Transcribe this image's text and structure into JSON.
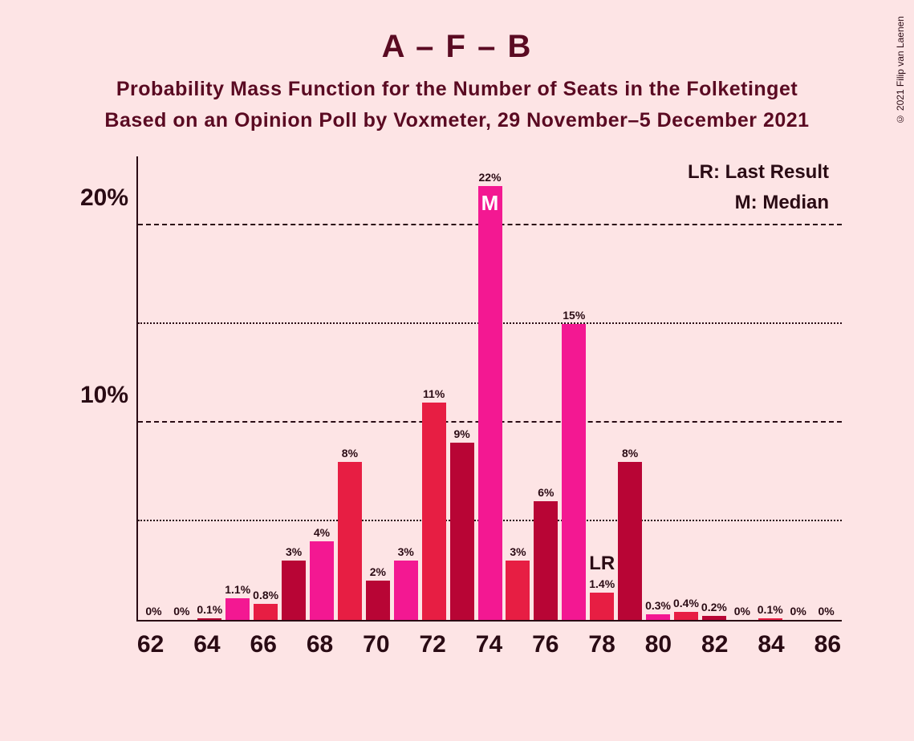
{
  "copyright": "© 2021 Filip van Laenen",
  "title": "A – F – B",
  "subtitle1": "Probability Mass Function for the Number of Seats in the Folketinget",
  "subtitle2": "Based on an Opinion Poll by Voxmeter, 29 November–5 December 2021",
  "legend": {
    "lr": "LR: Last Result",
    "m": "M: Median"
  },
  "chart": {
    "type": "bar",
    "background_color": "#fde4e5",
    "axis_color": "#2a0b14",
    "text_color": "#5a0a22",
    "ymax": 23.5,
    "ygrid": [
      {
        "value": 5,
        "label": "",
        "style": "dotted"
      },
      {
        "value": 10,
        "label": "10%",
        "style": "dashed"
      },
      {
        "value": 15,
        "label": "",
        "style": "dotted"
      },
      {
        "value": 20,
        "label": "20%",
        "style": "dashed"
      }
    ],
    "x_ticks": [
      62,
      64,
      66,
      68,
      70,
      72,
      74,
      76,
      78,
      80,
      82,
      84,
      86
    ],
    "colors": [
      "#f31892",
      "#e71e43",
      "#b80535"
    ],
    "bars": [
      {
        "x": 62,
        "pct": 0,
        "label": "0%",
        "c": 0
      },
      {
        "x": 63,
        "pct": 0,
        "label": "0%",
        "c": 1
      },
      {
        "x": 64,
        "pct": 0.1,
        "label": "0.1%",
        "c": 2
      },
      {
        "x": 65,
        "pct": 1.1,
        "label": "1.1%",
        "c": 0
      },
      {
        "x": 66,
        "pct": 0.8,
        "label": "0.8%",
        "c": 1
      },
      {
        "x": 67,
        "pct": 3,
        "label": "3%",
        "c": 2
      },
      {
        "x": 68,
        "pct": 4,
        "label": "4%",
        "c": 0
      },
      {
        "x": 69,
        "pct": 8,
        "label": "8%",
        "c": 1
      },
      {
        "x": 70,
        "pct": 2,
        "label": "2%",
        "c": 2
      },
      {
        "x": 71,
        "pct": 3,
        "label": "3%",
        "c": 0
      },
      {
        "x": 72,
        "pct": 11,
        "label": "11%",
        "c": 1
      },
      {
        "x": 73,
        "pct": 9,
        "label": "9%",
        "c": 2
      },
      {
        "x": 74,
        "pct": 22,
        "label": "22%",
        "c": 0,
        "marker": "M",
        "marker_pos": "inside"
      },
      {
        "x": 75,
        "pct": 3,
        "label": "3%",
        "c": 1
      },
      {
        "x": 76,
        "pct": 6,
        "label": "6%",
        "c": 2
      },
      {
        "x": 77,
        "pct": 15,
        "label": "15%",
        "c": 0
      },
      {
        "x": 78,
        "pct": 1.4,
        "label": "1.4%",
        "c": 1,
        "marker": "LR",
        "marker_pos": "above"
      },
      {
        "x": 79,
        "pct": 8,
        "label": "8%",
        "c": 2
      },
      {
        "x": 80,
        "pct": 0.3,
        "label": "0.3%",
        "c": 0
      },
      {
        "x": 81,
        "pct": 0.4,
        "label": "0.4%",
        "c": 1
      },
      {
        "x": 82,
        "pct": 0.2,
        "label": "0.2%",
        "c": 2
      },
      {
        "x": 83,
        "pct": 0,
        "label": "0%",
        "c": 0
      },
      {
        "x": 84,
        "pct": 0.1,
        "label": "0.1%",
        "c": 1
      },
      {
        "x": 85,
        "pct": 0,
        "label": "0%",
        "c": 2
      },
      {
        "x": 86,
        "pct": 0,
        "label": "0%",
        "c": 0
      }
    ]
  }
}
